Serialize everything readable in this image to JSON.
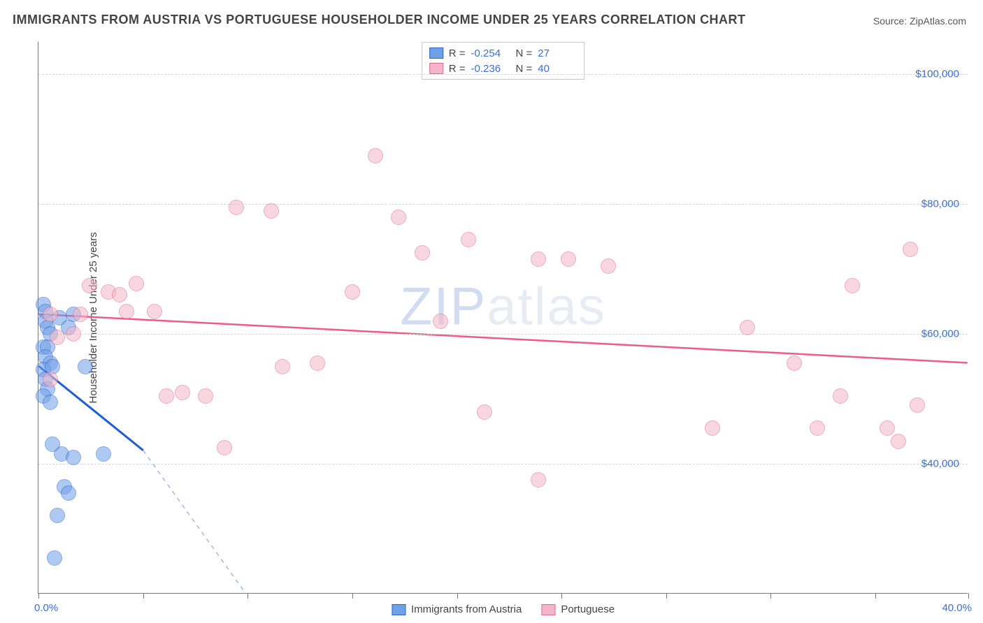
{
  "title": "IMMIGRANTS FROM AUSTRIA VS PORTUGUESE HOUSEHOLDER INCOME UNDER 25 YEARS CORRELATION CHART",
  "source_label": "Source:",
  "source_value": "ZipAtlas.com",
  "ylabel": "Householder Income Under 25 years",
  "watermark": "ZIPatlas",
  "chart": {
    "type": "scatter",
    "background_color": "#ffffff",
    "grid_color": "#d5d5d5",
    "axis_color": "#777777",
    "tick_label_color": "#3b6fd6",
    "label_fontsize": 15,
    "title_fontsize": 18,
    "xlim": [
      0,
      40
    ],
    "ylim": [
      20000,
      105000
    ],
    "yticks": [
      40000,
      60000,
      80000,
      100000
    ],
    "ytick_labels": [
      "$40,000",
      "$60,000",
      "$80,000",
      "$100,000"
    ],
    "xticks": [
      0,
      4.5,
      9,
      13.5,
      18,
      22.5,
      27,
      31.5,
      36,
      40
    ],
    "x_min_label": "0.0%",
    "x_max_label": "40.0%",
    "marker_radius": 11,
    "marker_opacity": 0.55,
    "series": [
      {
        "name": "Immigrants from Austria",
        "key": "austria",
        "color": "#6fa0e8",
        "border": "#2d63c4",
        "R": "-0.254",
        "N": "27",
        "trend": {
          "x1": 0,
          "y1": 55000,
          "x2": 4.5,
          "y2": 42000,
          "solid_color": "#1c5cd6",
          "solid_width": 3,
          "dash_x2": 10.5,
          "dash_y2": 12000,
          "dash_color": "#9fb9e8"
        },
        "points": [
          [
            0.2,
            64500
          ],
          [
            0.3,
            63500
          ],
          [
            0.3,
            62000
          ],
          [
            0.4,
            61000
          ],
          [
            0.5,
            60000
          ],
          [
            0.2,
            58000
          ],
          [
            0.4,
            58000
          ],
          [
            0.3,
            56500
          ],
          [
            0.5,
            55500
          ],
          [
            0.2,
            54500
          ],
          [
            0.6,
            55000
          ],
          [
            0.3,
            53000
          ],
          [
            0.4,
            51500
          ],
          [
            0.2,
            50500
          ],
          [
            0.5,
            49500
          ],
          [
            0.9,
            62500
          ],
          [
            1.5,
            63000
          ],
          [
            1.3,
            61000
          ],
          [
            2.0,
            55000
          ],
          [
            1.0,
            41500
          ],
          [
            1.5,
            41000
          ],
          [
            0.6,
            43000
          ],
          [
            2.8,
            41500
          ],
          [
            1.1,
            36500
          ],
          [
            1.3,
            35500
          ],
          [
            0.8,
            32000
          ],
          [
            0.7,
            25500
          ]
        ]
      },
      {
        "name": "Portuguese",
        "key": "portuguese",
        "color": "#f4b6c6",
        "border": "#e06a8f",
        "R": "-0.236",
        "N": "40",
        "trend": {
          "x1": 0,
          "y1": 63000,
          "x2": 40,
          "y2": 55500,
          "solid_color": "#ef5a89",
          "solid_width": 2.5
        },
        "points": [
          [
            0.5,
            63000
          ],
          [
            0.5,
            53000
          ],
          [
            0.8,
            59500
          ],
          [
            1.5,
            60000
          ],
          [
            1.8,
            63000
          ],
          [
            2.2,
            67500
          ],
          [
            3.0,
            66500
          ],
          [
            3.5,
            66000
          ],
          [
            3.8,
            63500
          ],
          [
            5.0,
            63500
          ],
          [
            4.2,
            67800
          ],
          [
            5.5,
            50500
          ],
          [
            6.2,
            51000
          ],
          [
            7.2,
            50500
          ],
          [
            8.0,
            42500
          ],
          [
            8.5,
            79500
          ],
          [
            10.0,
            79000
          ],
          [
            10.5,
            55000
          ],
          [
            12.0,
            55500
          ],
          [
            13.5,
            66500
          ],
          [
            14.5,
            87500
          ],
          [
            15.5,
            78000
          ],
          [
            16.5,
            72500
          ],
          [
            17.3,
            62000
          ],
          [
            18.5,
            74500
          ],
          [
            19.2,
            48000
          ],
          [
            21.5,
            71500
          ],
          [
            22.8,
            71500
          ],
          [
            21.5,
            37500
          ],
          [
            24.5,
            70500
          ],
          [
            29.0,
            45500
          ],
          [
            30.5,
            61000
          ],
          [
            32.5,
            55500
          ],
          [
            33.5,
            45500
          ],
          [
            34.5,
            50500
          ],
          [
            35.0,
            67500
          ],
          [
            36.5,
            45500
          ],
          [
            37.5,
            73000
          ],
          [
            37.8,
            49000
          ],
          [
            37.0,
            43500
          ]
        ]
      }
    ]
  },
  "legend_top": {
    "R_label": "R =",
    "N_label": "N ="
  },
  "legend_bottom_items": [
    {
      "key": "austria",
      "label": "Immigrants from Austria"
    },
    {
      "key": "portuguese",
      "label": "Portuguese"
    }
  ]
}
